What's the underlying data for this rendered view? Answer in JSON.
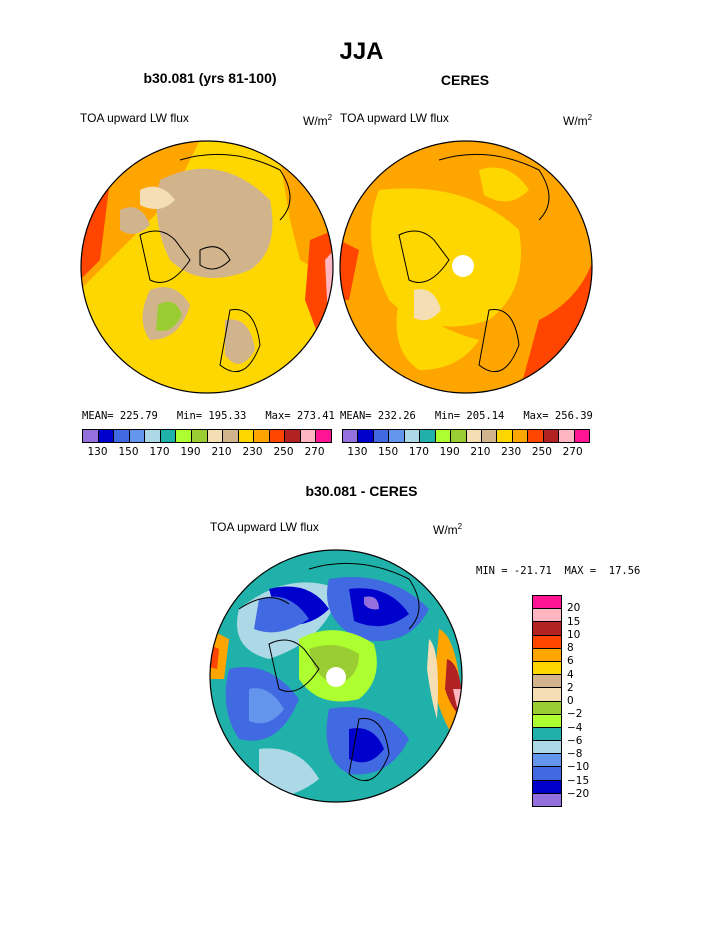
{
  "title": "JJA",
  "panels": [
    {
      "title": "b30.081 (yrs 81-100)",
      "variable": "TOA upward LW flux",
      "units": "W/m",
      "units_exp": "2",
      "stats": "MEAN= 225.79   Min= 195.33   Max= 273.41"
    },
    {
      "title": "CERES",
      "variable": "TOA upward LW flux",
      "units": "W/m",
      "units_exp": "2",
      "stats": "MEAN= 232.26   Min= 205.14   Max= 256.39"
    },
    {
      "title": "b30.081 - CERES",
      "variable": "TOA upward LW flux",
      "units": "W/m",
      "units_exp": "2",
      "stats": "MIN = -21.71  MAX =  17.56"
    }
  ],
  "colorbar_abs": {
    "colors": [
      "#9370db",
      "#0000cd",
      "#4169e1",
      "#6495ed",
      "#add8e6",
      "#20b2aa",
      "#adff2f",
      "#9acd32",
      "#f5deb3",
      "#d2b48c",
      "#ffd700",
      "#ffa500",
      "#ff4500",
      "#b22222",
      "#ffb6c1",
      "#ff1493"
    ],
    "labels": [
      "130",
      "150",
      "170",
      "190",
      "210",
      "230",
      "250",
      "270"
    ]
  },
  "colorbar_diff": {
    "colors": [
      "#ff1493",
      "#ffb6c1",
      "#b22222",
      "#ff4500",
      "#ffa500",
      "#ffd700",
      "#d2b48c",
      "#f5deb3",
      "#9acd32",
      "#adff2f",
      "#20b2aa",
      "#add8e6",
      "#6495ed",
      "#4169e1",
      "#0000cd",
      "#9370db"
    ],
    "labels": [
      "20",
      "15",
      "10",
      "8",
      "6",
      "4",
      "2",
      "0",
      "-2",
      "-4",
      "-6",
      "-8",
      "-10",
      "-15",
      "-20"
    ]
  }
}
